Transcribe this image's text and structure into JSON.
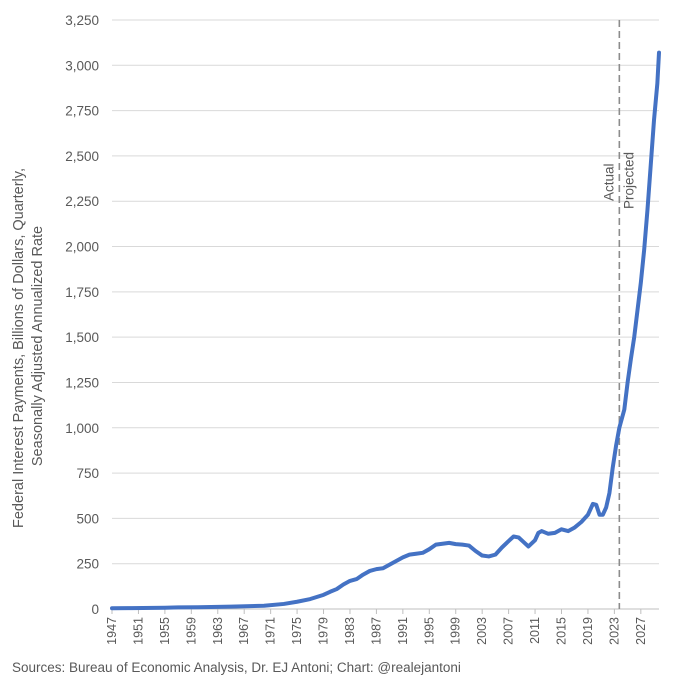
{
  "chart_data": {
    "type": "line",
    "title": "",
    "ylabel_lines": [
      "Federal Interest Payments, Billions of Dollars, Quarterly,",
      "Seasonally Adjusted Annualized Rate"
    ],
    "xlabel": "",
    "ylim": [
      0,
      3250
    ],
    "yticks": [
      0,
      250,
      500,
      750,
      1000,
      1250,
      1500,
      1750,
      2000,
      2250,
      2500,
      2750,
      3000,
      3250
    ],
    "ytick_labels": [
      "0",
      "250",
      "500",
      "750",
      "1,000",
      "1,250",
      "1,500",
      "1,750",
      "2,000",
      "2,250",
      "2,500",
      "2,750",
      "3,000",
      "3,250"
    ],
    "xlim": [
      1947,
      2029.75
    ],
    "xtick_labels": [
      "1947",
      "1951",
      "1955",
      "1959",
      "1963",
      "1967",
      "1971",
      "1975",
      "1979",
      "1983",
      "1987",
      "1991",
      "1995",
      "1999",
      "2003",
      "2007",
      "2011",
      "2015",
      "2019",
      "2023",
      "2027"
    ],
    "grid": "horizontal",
    "divider": {
      "x": 2023.75,
      "left_label": "Actual",
      "right_label": "Projected"
    },
    "series": [
      {
        "color": "#4472C4",
        "x": [
          1947,
          1950,
          1955,
          1957,
          1960,
          1965,
          1970,
          1973,
          1975,
          1977,
          1979,
          1980,
          1981,
          1982,
          1983,
          1984,
          1985,
          1986,
          1987,
          1988,
          1989,
          1990,
          1991,
          1992,
          1993,
          1994,
          1995,
          1996,
          1997,
          1998,
          1999,
          2000,
          2001,
          2002,
          2003,
          2004,
          2005,
          2006,
          2007,
          2007.75,
          2008.5,
          2009.25,
          2010,
          2011,
          2011.5,
          2012,
          2013,
          2014,
          2015,
          2016,
          2017,
          2018,
          2019,
          2019.75,
          2020.25,
          2020.75,
          2021.25,
          2021.75,
          2022.25,
          2022.75,
          2023.25,
          2023.75,
          2024.5,
          2025,
          2025.5,
          2026,
          2026.5,
          2027,
          2027.5,
          2028,
          2028.5,
          2029,
          2029.5,
          2029.75
        ],
        "y": [
          4,
          5,
          7,
          9,
          10,
          13,
          18,
          28,
          40,
          55,
          78,
          95,
          110,
          135,
          155,
          165,
          190,
          210,
          220,
          225,
          245,
          265,
          285,
          300,
          305,
          310,
          330,
          355,
          360,
          365,
          358,
          355,
          350,
          320,
          295,
          290,
          300,
          340,
          375,
          400,
          395,
          370,
          345,
          380,
          420,
          430,
          415,
          420,
          440,
          430,
          450,
          480,
          520,
          580,
          575,
          520,
          520,
          560,
          640,
          780,
          900,
          1000,
          1100,
          1250,
          1380,
          1500,
          1650,
          1800,
          1980,
          2200,
          2450,
          2700,
          2900,
          3070
        ]
      }
    ]
  },
  "source": "Sources: Bureau of Economic Analysis, Dr. EJ Antoni; Chart: @realejantoni"
}
